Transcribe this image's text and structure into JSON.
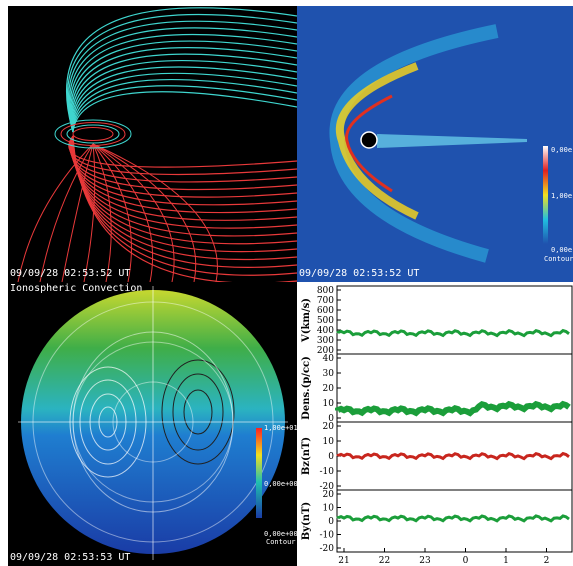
{
  "panels": {
    "field_lines": {
      "timestamp": "09/09/28 02:53:52 UT",
      "colors": {
        "background": "#000000",
        "open_lines": "#3fd6cf",
        "closed_lines": "#e8393a"
      }
    },
    "density": {
      "timestamp": "09/09/28 02:53:52 UT",
      "colorbar": {
        "top_label": "0,00e",
        "mid_label": "1,00e",
        "bottom_label": "0,00e",
        "contour_label": "Contour"
      },
      "colors": {
        "background": "#1f52ae"
      }
    },
    "ionosphere": {
      "title": "Ionospheric Convection",
      "timestamp": "09/09/28 02:53:53 UT",
      "colorbar": {
        "top_label": "1,00e+01",
        "mid_label": "0,00e+00",
        "bottom_label": "0,00e+00",
        "contour_label": "Contour"
      }
    },
    "solar_wind": {
      "x_ticks": [
        "21",
        "22",
        "23",
        "0",
        "1",
        "2"
      ],
      "plots": [
        {
          "ylabel": "V(km/s)",
          "ticks": [
            "800",
            "700",
            "600",
            "500",
            "400",
            "300",
            "200"
          ],
          "color": "#1b9e3a",
          "level": 370
        },
        {
          "ylabel": "Dens.(p/cc)",
          "ticks": [
            "40",
            "30",
            "20",
            "10",
            "0"
          ],
          "color": "#1b9e3a",
          "level": 5
        },
        {
          "ylabel": "Bz(nT)",
          "ticks": [
            "20",
            "10",
            "0",
            "-10",
            "-20"
          ],
          "color": "#c8261e",
          "level": 0
        },
        {
          "ylabel": "By(nT)",
          "ticks": [
            "20",
            "10",
            "0",
            "-10",
            "-20"
          ],
          "color": "#1b9e3a",
          "level": 2
        }
      ]
    }
  }
}
